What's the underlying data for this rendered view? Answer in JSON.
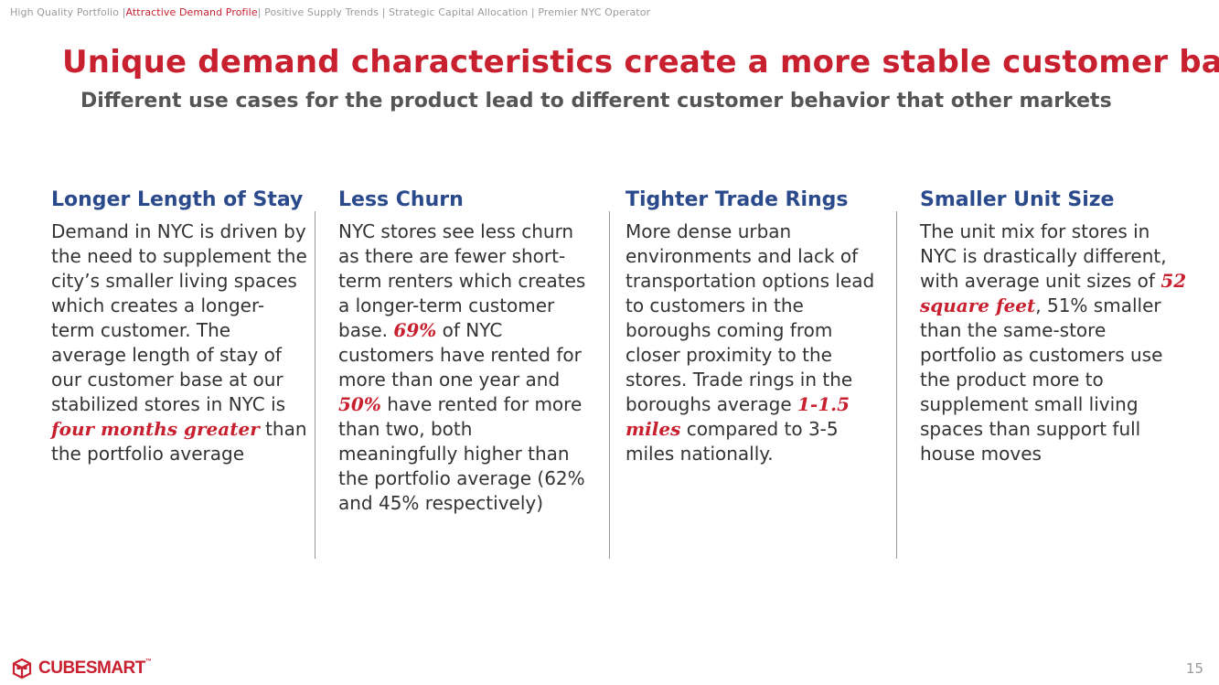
{
  "breadcrumb": {
    "item1": "High Quality Portfolio |",
    "item2_active": "Attractive Demand Profile",
    "item3": "| Positive Supply Trends | Strategic Capital Allocation | Premier NYC Operator"
  },
  "title": "Unique demand characteristics create a more stable customer base",
  "subtitle": "Different use cases for the product lead to different customer behavior that other markets",
  "columns": [
    {
      "heading": "Longer Length of Stay",
      "text_before": "Demand in NYC is driven by the need to supplement the city’s smaller living spaces which creates a longer-term customer. The average length of stay of our customer base at our stabilized stores in NYC is",
      "highlight": "four months greater",
      "text_after": "than the portfolio average"
    },
    {
      "heading": "Less Churn",
      "text_before": "NYC stores see less churn as there are fewer short-term renters which creates a longer-term customer base.",
      "highlight": "69%",
      "text_middle": "of NYC customers have rented for more than one year and",
      "highlight2": "50%",
      "text_after": "have rented for more than two, both meaningfully higher than the portfolio average (62% and 45% respectively)"
    },
    {
      "heading": "Tighter Trade Rings",
      "text_before": "More dense urban environments and lack of transportation options lead to customers in the boroughs coming from closer proximity to the stores. Trade rings in the boroughs average",
      "highlight": "1-1.5 miles",
      "text_after": "compared to 3-5 miles nationally."
    },
    {
      "heading": "Smaller Unit Size",
      "text_before": "The unit mix for stores in NYC is drastically different, with average unit sizes of",
      "highlight": "52 square feet",
      "text_after": ", 51% smaller than the same-store portfolio as customers use the product more to supplement small living spaces than support full house moves"
    }
  ],
  "footer": {
    "logo_text": "CUBESMART",
    "logo_tm": "™",
    "page_number": "15"
  },
  "colors": {
    "brand_red": "#c8202f",
    "heading_blue": "#2a4a8c",
    "muted_gray": "#9a9a9a"
  },
  "icons": [
    "cube-logo-icon"
  ]
}
